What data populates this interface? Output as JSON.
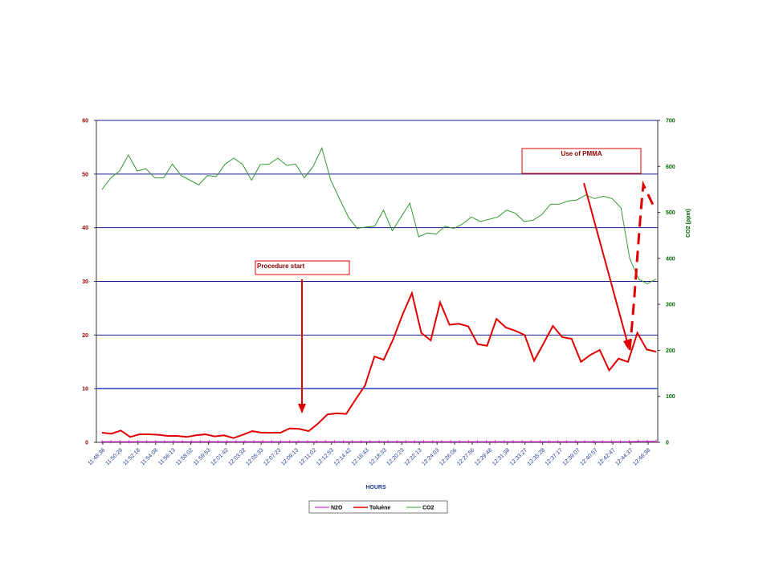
{
  "chart_data": {
    "type": "line",
    "xlabel": "HOURS",
    "ylabel_right": "CO2 (ppm)",
    "ylim_left": [
      0,
      60
    ],
    "yticks_left": [
      "0",
      "10",
      "20",
      "30",
      "40",
      "50",
      "60"
    ],
    "ylim_right": [
      0,
      700
    ],
    "yticks_right": [
      "0",
      "100",
      "200",
      "300",
      "400",
      "500",
      "600",
      "700"
    ],
    "grid": true,
    "legend_position": "bottom",
    "x_tick_labels": [
      "11:48:38",
      "11:50:28",
      "11:52:18",
      "11:54:08",
      "11:56:13",
      "11:58:02",
      "11:59:53",
      "12:01:42",
      "12:03:32",
      "12:05:33",
      "12:07:23",
      "12:09:13",
      "12:11:02",
      "12:12:53",
      "12:14:42",
      "12:16:43",
      "12:18:33",
      "12:20:23",
      "12:22:13",
      "12:24:03",
      "12:26:06",
      "12:27:56",
      "12:29:48",
      "12:31:38",
      "12:33:27",
      "12:35:28",
      "12:37:17",
      "12:39:07",
      "12:40:57",
      "12:42:47",
      "12:44:37",
      "12:46:38"
    ],
    "series": [
      {
        "name": "N2O",
        "axis": "left",
        "color": "#cc00cc",
        "values": [
          0.1,
          0.1,
          0.1,
          0.1,
          0.1,
          0.1,
          0.1,
          0.1,
          0.1,
          0.1,
          0.1,
          0.1,
          0.1,
          0.1,
          0.1,
          0.1,
          0.1,
          0.1,
          0.1,
          0.1,
          0.1,
          0.1,
          0.1,
          0.1,
          0.1,
          0.1,
          0.1,
          0.1,
          0.1,
          0.1,
          0.1,
          0.1,
          0.1,
          0.1,
          0.1,
          0.1,
          0.1,
          0.1,
          0.1,
          0.1,
          0.1,
          0.1,
          0.1,
          0.1,
          0.1,
          0.1,
          0.1,
          0.1,
          0.1,
          0.1,
          0.1,
          0.1,
          0.1,
          0.1,
          0.1,
          0.1,
          0.1,
          0.1,
          0.1,
          0.1,
          0.2,
          0.2,
          0.2
        ]
      },
      {
        "name": "Toluène",
        "axis": "left",
        "color": "#e00000",
        "values": [
          1.8,
          1.6,
          2.2,
          1.0,
          1.5,
          1.5,
          1.4,
          1.2,
          1.2,
          1.0,
          1.3,
          1.5,
          1.1,
          1.3,
          0.8,
          1.4,
          2.1,
          1.8,
          1.8,
          1.8,
          2.6,
          2.5,
          2.1,
          3.5,
          5.2,
          5.4,
          5.3,
          8.0,
          10.6,
          16.0,
          15.4,
          19.2,
          23.8,
          27.8,
          20.4,
          19.0,
          26.1,
          21.9,
          22.1,
          21.6,
          18.3,
          18.0,
          23.0,
          21.4,
          20.8,
          20.0,
          15.2,
          18.4,
          21.7,
          19.6,
          19.3,
          15.0,
          16.3,
          17.2,
          13.4,
          15.6,
          15.0,
          20.4,
          17.3,
          16.9
        ]
      },
      {
        "name": "CO2",
        "axis": "right",
        "color": "#339933",
        "values": [
          550,
          575,
          590,
          625,
          590,
          595,
          575,
          575,
          605,
          580,
          570,
          560,
          580,
          578,
          605,
          618,
          604,
          570,
          604,
          605,
          618,
          602,
          605,
          575,
          600,
          640,
          570,
          530,
          490,
          465,
          468,
          470,
          505,
          460,
          490,
          520,
          447,
          455,
          453,
          470,
          465,
          475,
          490,
          480,
          485,
          490,
          505,
          498,
          480,
          483,
          495,
          518,
          518,
          525,
          527,
          538,
          530,
          535,
          530,
          510,
          400,
          355,
          345,
          355
        ]
      }
    ],
    "annotations": [
      {
        "text": "Procedure start"
      },
      {
        "text": "Use of PMMA"
      }
    ]
  }
}
